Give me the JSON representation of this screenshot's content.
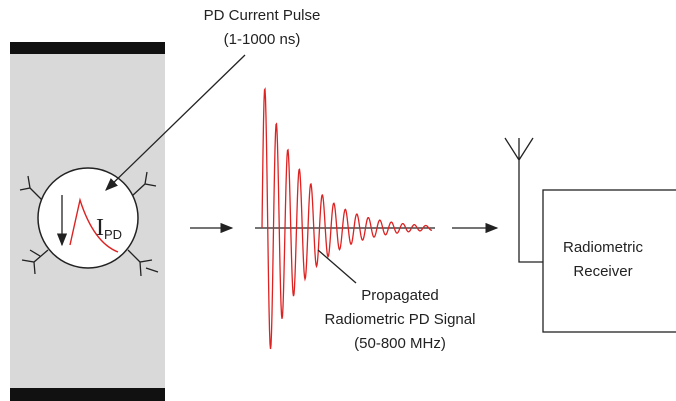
{
  "pulse": {
    "title": "PD Current Pulse",
    "duration": "(1-1000 ns)"
  },
  "current": {
    "symbol": "I",
    "subscript": "PD"
  },
  "signal": {
    "line1": "Propagated",
    "line2": "Radiometric PD Signal",
    "band": "(50-800 MHz)"
  },
  "receiver": {
    "line1": "Radiometric",
    "line2": "Receiver"
  }
}
